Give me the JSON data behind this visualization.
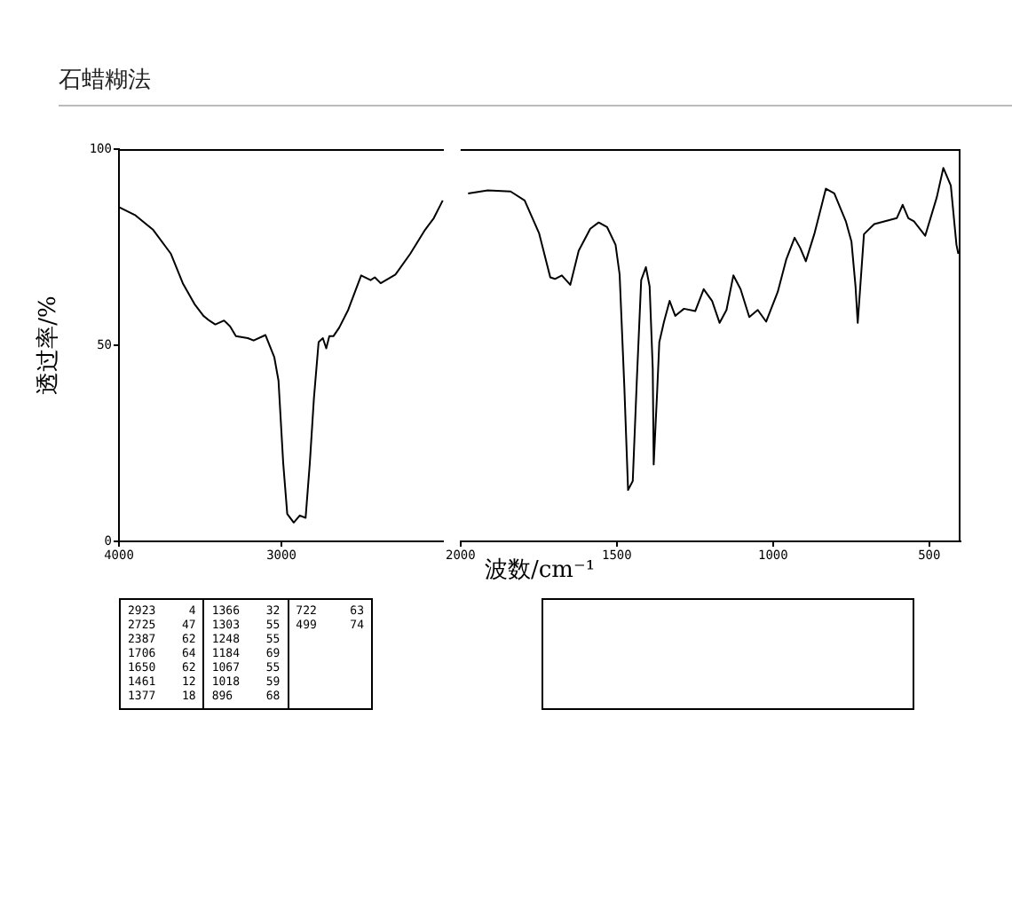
{
  "chart_data": [
    {
      "type": "line",
      "title": "石蜡糊法",
      "ylabel": "透过率/%",
      "x": [
        4000,
        3898,
        3789,
        3680,
        3607,
        3535,
        3480,
        3444,
        3407,
        3353,
        3316,
        3280,
        3207,
        3171,
        3098,
        3044,
        3018,
        2989,
        2964,
        2924,
        2887,
        2851,
        2825,
        2800,
        2771,
        2745,
        2724,
        2705,
        2680,
        2644,
        2589,
        2509,
        2451,
        2425,
        2389,
        2298,
        2207,
        2116,
        2062,
        2007
      ],
      "values": [
        85.2,
        83.1,
        79.4,
        73.3,
        65.8,
        60.5,
        57.5,
        56.3,
        55.3,
        56.3,
        54.8,
        52.3,
        51.8,
        51.2,
        52.6,
        47,
        41,
        20,
        7,
        4.8,
        6.6,
        6,
        20,
        36.4,
        50.8,
        51.8,
        49.2,
        52.3,
        52.3,
        54.5,
        59,
        67.8,
        66.6,
        67.3,
        65.8,
        68,
        73.3,
        79.4,
        82.4,
        86.9
      ],
      "color": "#000000",
      "xlim": [
        4000,
        2000
      ],
      "xticks": [
        4000,
        3000
      ],
      "ylim": [
        0,
        100
      ],
      "yticks": [
        0,
        50,
        100
      ],
      "grid": false,
      "legend": false,
      "marker": "none",
      "annotations": [
        "2923 4",
        "2725 47",
        "2387 62",
        "1706 64",
        "1650 62",
        "1461 12",
        "1377 18",
        "1366 32",
        "1303 55",
        "1248 55",
        "1184 69",
        "1067 55",
        "1018 59",
        "896 68",
        "722 63",
        "499 74"
      ]
    },
    {
      "type": "line",
      "xlabel": "波数/cm⁻¹",
      "x": [
        1976,
        1913,
        1840,
        1795,
        1749,
        1713,
        1698,
        1676,
        1649,
        1622,
        1585,
        1558,
        1531,
        1504,
        1491,
        1476,
        1464,
        1449,
        1436,
        1422,
        1407,
        1395,
        1385,
        1382,
        1371,
        1364,
        1349,
        1331,
        1313,
        1285,
        1249,
        1222,
        1195,
        1171,
        1149,
        1127,
        1104,
        1076,
        1049,
        1022,
        985,
        958,
        931,
        913,
        895,
        867,
        831,
        804,
        767,
        749,
        736,
        729,
        722,
        709,
        676,
        604,
        585,
        567,
        549,
        513,
        476,
        455,
        431,
        413,
        407
      ],
      "values": [
        88.7,
        89.5,
        89.2,
        86.9,
        78.6,
        67.3,
        66.9,
        67.8,
        65.4,
        74.1,
        79.7,
        81.3,
        80.1,
        75.6,
        68,
        39.5,
        13.1,
        15.4,
        41,
        66.6,
        69.9,
        65,
        44,
        19.6,
        38,
        50.8,
        56,
        61.3,
        57.5,
        59.3,
        58.7,
        64.3,
        61.3,
        55.7,
        59,
        67.8,
        64.3,
        57.2,
        59,
        56,
        63.6,
        71.8,
        77.4,
        74.8,
        71.4,
        78.6,
        89.9,
        88.7,
        81.6,
        76.4,
        65,
        55.7,
        63.6,
        78.3,
        80.9,
        82.4,
        85.8,
        82.4,
        81.6,
        77.9,
        87.7,
        95.2,
        90.7,
        75.6,
        73.3
      ],
      "color": "#000000",
      "xlim": [
        2000,
        400
      ],
      "xticks": [
        2000,
        1500,
        1000,
        500
      ],
      "ylim": [
        0,
        100
      ],
      "tick_labels": "x",
      "grid": false,
      "legend": false,
      "marker": "none"
    }
  ]
}
